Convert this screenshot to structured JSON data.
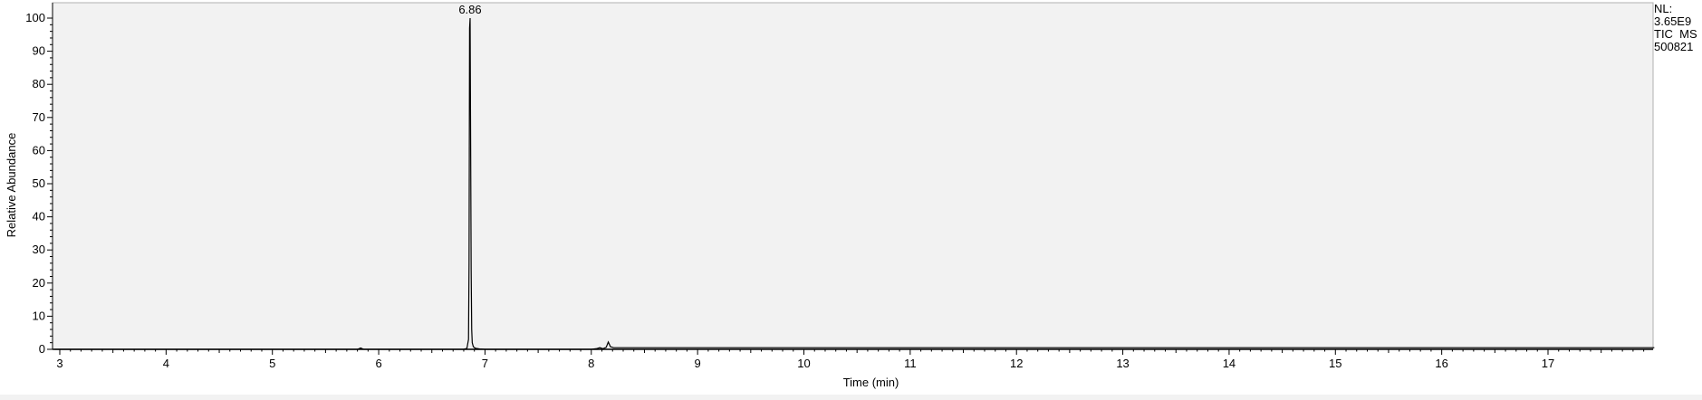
{
  "chart_data": {
    "type": "line",
    "title": "",
    "xlabel": "Time (min)",
    "ylabel": "Relative Abundance",
    "xlim": [
      2.95,
      18.0
    ],
    "ylim": [
      0,
      100
    ],
    "x_ticks": [
      3,
      4,
      5,
      6,
      7,
      8,
      9,
      10,
      11,
      12,
      13,
      14,
      15,
      16,
      17
    ],
    "y_ticks": [
      0,
      10,
      20,
      30,
      40,
      50,
      60,
      70,
      80,
      90,
      100
    ],
    "grid": false,
    "background_color": "#f2f2f2",
    "line_color": "#000000",
    "annotations": [
      {
        "x": 6.86,
        "y": 100,
        "text": "6.86"
      }
    ],
    "series": [
      {
        "x": [
          2.95,
          5.8,
          5.83,
          5.86,
          6.8,
          6.83,
          6.845,
          6.85,
          6.855,
          6.86,
          6.865,
          6.87,
          6.875,
          6.88,
          6.89,
          6.91,
          6.95,
          7.0,
          8.0,
          8.05,
          8.08,
          8.11,
          8.14,
          8.16,
          8.18,
          8.21,
          8.3,
          18.0
        ],
        "y": [
          0,
          0,
          0.4,
          0,
          0,
          0.3,
          3,
          26,
          97,
          100,
          62,
          24,
          6,
          2,
          0.8,
          0.3,
          0.1,
          0,
          0,
          0.2,
          0.5,
          0.2,
          0.6,
          2.2,
          0.8,
          0.5,
          0.5,
          0.5
        ]
      }
    ]
  },
  "info_panel": {
    "line1": "NL:",
    "line2": "3.65E9",
    "line3": "TIC  MS",
    "line4": "500821"
  }
}
